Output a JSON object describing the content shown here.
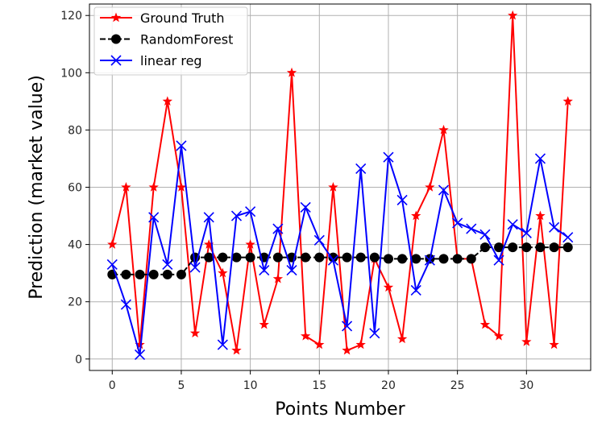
{
  "chart_data": {
    "type": "line",
    "xlabel": "Points Number",
    "ylabel": "Prediction (market value)",
    "xlim": [
      -1.65,
      34.65
    ],
    "ylim": [
      -4,
      124
    ],
    "xticks": [
      0,
      5,
      10,
      15,
      20,
      25,
      30
    ],
    "yticks": [
      0,
      20,
      40,
      60,
      80,
      100,
      120
    ],
    "grid": true,
    "legend_position": "top-left",
    "x": [
      0,
      1,
      2,
      3,
      4,
      5,
      6,
      7,
      8,
      9,
      10,
      11,
      12,
      13,
      14,
      15,
      16,
      17,
      18,
      19,
      20,
      21,
      22,
      23,
      24,
      25,
      26,
      27,
      28,
      29,
      30,
      31,
      32,
      33
    ],
    "series": [
      {
        "name": "Ground Truth",
        "color": "#ff0000",
        "marker": "star",
        "line_style": "solid",
        "values": [
          40,
          60,
          5,
          60,
          90,
          60,
          9,
          40,
          30,
          3,
          40,
          12,
          28,
          100,
          8,
          5,
          60,
          3,
          5,
          35,
          25,
          7,
          50,
          60,
          80,
          35,
          35,
          12,
          8,
          120,
          6,
          50,
          5,
          90
        ]
      },
      {
        "name": "RandomForest",
        "color": "#000000",
        "marker": "circle",
        "line_style": "dashed",
        "values": [
          29.5,
          29.5,
          29.5,
          29.5,
          29.5,
          29.5,
          35.5,
          35.5,
          35.5,
          35.5,
          35.5,
          35.5,
          35.5,
          35.5,
          35.5,
          35.5,
          35.5,
          35.5,
          35.5,
          35.5,
          35,
          35,
          35,
          35,
          35,
          35,
          35,
          39,
          39,
          39,
          39,
          39,
          39,
          39
        ]
      },
      {
        "name": "linear reg",
        "color": "#0000ff",
        "marker": "x",
        "line_style": "solid",
        "values": [
          33,
          19,
          1.5,
          49.5,
          33,
          74.5,
          32,
          49.5,
          5,
          50,
          51.5,
          31,
          45.5,
          31,
          53,
          41.5,
          34.5,
          11.5,
          66.5,
          9,
          70.5,
          55.5,
          24,
          34.5,
          59,
          47.5,
          45.5,
          43.5,
          34.5,
          47,
          44,
          70,
          46,
          42.5
        ]
      }
    ]
  }
}
